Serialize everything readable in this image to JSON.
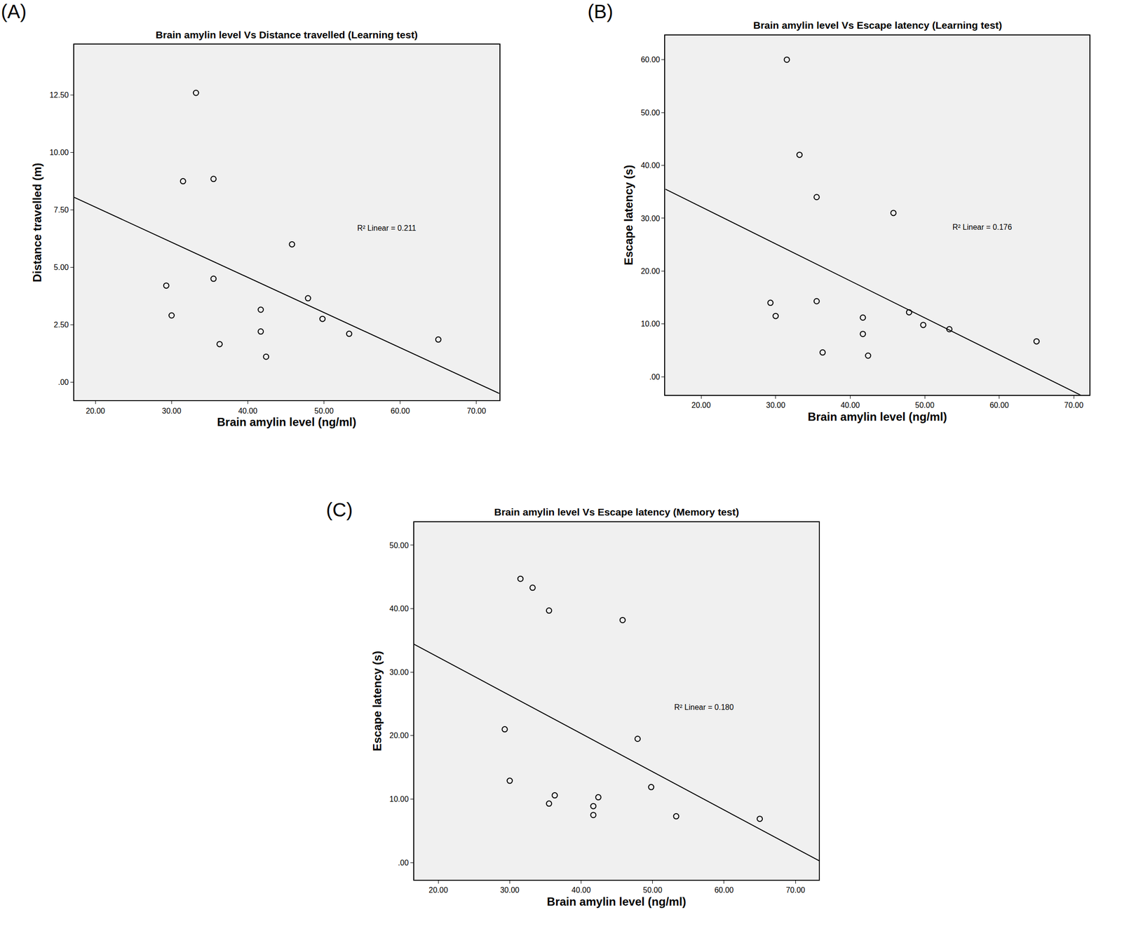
{
  "chart_data": [
    {
      "type": "scatter",
      "label": "(A)",
      "title": "Brain amylin level Vs Distance travelled (Learning test)",
      "x_label": "Brain amylin level (ng/ml)",
      "y_label": "Distance travelled (m)",
      "x": [
        29.3,
        30.0,
        31.5,
        33.2,
        35.5,
        35.5,
        36.3,
        41.7,
        41.7,
        42.4,
        45.8,
        47.9,
        49.8,
        53.3,
        65.0
      ],
      "values": [
        4.2,
        2.9,
        8.75,
        12.6,
        8.85,
        4.5,
        1.65,
        3.15,
        2.2,
        1.1,
        6.0,
        3.65,
        2.75,
        2.1,
        1.85
      ],
      "fit_line": {
        "x": [
          17.2,
          73.0
        ],
        "values": [
          8.05,
          -0.5
        ]
      },
      "annotation": {
        "text": "R² Linear = 0.211",
        "x": 58.2,
        "y": 6.7
      },
      "xlim": [
        17.2,
        73.0
      ],
      "ylim": [
        -0.8,
        14.7
      ],
      "xticks": [
        {
          "value": 20,
          "label": "20.00"
        },
        {
          "value": 30,
          "label": "30.00"
        },
        {
          "value": 40,
          "label": "40.00"
        },
        {
          "value": 50,
          "label": "50.00"
        },
        {
          "value": 60,
          "label": "60.00"
        },
        {
          "value": 70,
          "label": "70.00"
        }
      ],
      "yticks": [
        {
          "value": 0,
          "label": ".00"
        },
        {
          "value": 2.5,
          "label": "2.50"
        },
        {
          "value": 5,
          "label": "5.00"
        },
        {
          "value": 7.5,
          "label": "7.50"
        },
        {
          "value": 10,
          "label": "10.00"
        },
        {
          "value": 12.5,
          "label": "12.50"
        }
      ],
      "color": "#000000",
      "marker": "circle-open",
      "line_style": "solid",
      "grid": false
    },
    {
      "type": "scatter",
      "label": "(B)",
      "title": "Brain amylin level Vs Escape latency (Learning test)",
      "x_label": "Brain amylin level (ng/ml)",
      "y_label": "Escape latency (s)",
      "x": [
        29.3,
        30.0,
        31.5,
        33.2,
        35.5,
        35.5,
        36.3,
        41.7,
        41.7,
        42.4,
        45.8,
        47.9,
        49.8,
        53.3,
        65.0
      ],
      "values": [
        14.0,
        11.5,
        60.0,
        42.0,
        34.0,
        14.3,
        4.6,
        11.2,
        8.1,
        4.0,
        31.0,
        12.2,
        9.8,
        9.0,
        6.7
      ],
      "fit_line": {
        "x": [
          15.2,
          72.1
        ],
        "values": [
          35.5,
          -4.3
        ]
      },
      "annotation": {
        "text": "R² Linear = 0.176",
        "x": 57.7,
        "y": 28.3
      },
      "xlim": [
        15.2,
        72.1
      ],
      "ylim": [
        -3.4,
        64.6
      ],
      "xticks": [
        {
          "value": 20,
          "label": "20.00"
        },
        {
          "value": 30,
          "label": "30.00"
        },
        {
          "value": 40,
          "label": "40.00"
        },
        {
          "value": 50,
          "label": "50.00"
        },
        {
          "value": 60,
          "label": "60.00"
        },
        {
          "value": 70,
          "label": "70.00"
        }
      ],
      "yticks": [
        {
          "value": 0,
          "label": ".00"
        },
        {
          "value": 10,
          "label": "10.00"
        },
        {
          "value": 20,
          "label": "20.00"
        },
        {
          "value": 30,
          "label": "30.00"
        },
        {
          "value": 40,
          "label": "40.00"
        },
        {
          "value": 50,
          "label": "50.00"
        },
        {
          "value": 60,
          "label": "60.00"
        }
      ],
      "color": "#000000",
      "marker": "circle-open",
      "line_style": "solid",
      "grid": false
    },
    {
      "type": "scatter",
      "label": "(C)",
      "title": "Brain amylin level Vs Escape latency (Memory test)",
      "x_label": "Brain amylin level (ng/ml)",
      "y_label": "Escape latency (s)",
      "x": [
        29.3,
        30.0,
        31.5,
        33.2,
        35.5,
        35.5,
        36.3,
        41.7,
        41.7,
        42.4,
        45.8,
        47.9,
        49.8,
        53.3,
        65.0
      ],
      "values": [
        21.0,
        12.9,
        44.7,
        43.3,
        39.7,
        9.3,
        10.6,
        8.9,
        7.5,
        10.3,
        38.2,
        19.5,
        11.9,
        7.3,
        6.9
      ],
      "fit_line": {
        "x": [
          16.6,
          73.3
        ],
        "values": [
          34.4,
          0.3
        ]
      },
      "annotation": {
        "text": "R² Linear = 0.180",
        "x": 57.2,
        "y": 24.5
      },
      "xlim": [
        16.6,
        73.3
      ],
      "ylim": [
        -2.7,
        53.6
      ],
      "xticks": [
        {
          "value": 20,
          "label": "20.00"
        },
        {
          "value": 30,
          "label": "30.00"
        },
        {
          "value": 40,
          "label": "40.00"
        },
        {
          "value": 50,
          "label": "50.00"
        },
        {
          "value": 60,
          "label": "60.00"
        },
        {
          "value": 70,
          "label": "70.00"
        }
      ],
      "yticks": [
        {
          "value": 0,
          "label": ".00"
        },
        {
          "value": 10,
          "label": "10.00"
        },
        {
          "value": 20,
          "label": "20.00"
        },
        {
          "value": 30,
          "label": "30.00"
        },
        {
          "value": 40,
          "label": "40.00"
        },
        {
          "value": 50,
          "label": "50.00"
        }
      ],
      "color": "#000000",
      "marker": "circle-open",
      "line_style": "solid",
      "grid": false
    }
  ]
}
